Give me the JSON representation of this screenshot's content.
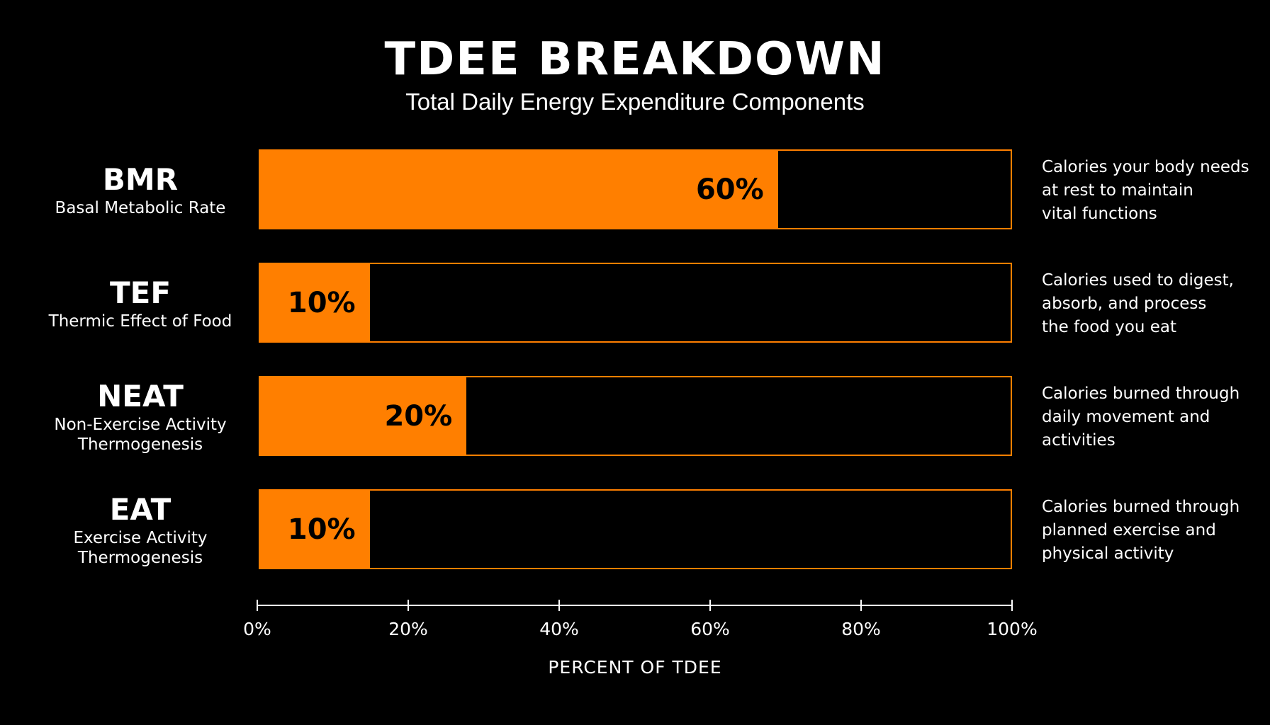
{
  "chart_data": {
    "type": "bar",
    "orientation": "horizontal",
    "title": "TDEE BREAKDOWN",
    "subtitle": "Total Daily Energy Expenditure Components",
    "xlabel": "PERCENT OF TDEE",
    "xlim": [
      0,
      100
    ],
    "x_ticks": [
      "0%",
      "20%",
      "40%",
      "60%",
      "80%",
      "100%"
    ],
    "grid": false,
    "bar_color": "#ff7f00",
    "categories": [
      {
        "abbr": "BMR",
        "name": "Basal Metabolic Rate",
        "value": 60,
        "value_label": "60%",
        "bar_fill_percent": 69,
        "description": "Calories your body needs\nat rest to maintain\nvital functions"
      },
      {
        "abbr": "TEF",
        "name": "Thermic Effect of Food",
        "value": 10,
        "value_label": "10%",
        "bar_fill_percent": 14.6,
        "description": "Calories used to digest,\nabsorb, and process\nthe food you eat"
      },
      {
        "abbr": "NEAT",
        "name": "Non-Exercise Activity\nThermogenesis",
        "value": 20,
        "value_label": "20%",
        "bar_fill_percent": 27.5,
        "description": "Calories burned through\ndaily movement and\nactivities"
      },
      {
        "abbr": "EAT",
        "name": "Exercise Activity\nThermogenesis",
        "value": 10,
        "value_label": "10%",
        "bar_fill_percent": 14.6,
        "description": "Calories burned through\nplanned exercise and\nphysical activity"
      }
    ]
  }
}
